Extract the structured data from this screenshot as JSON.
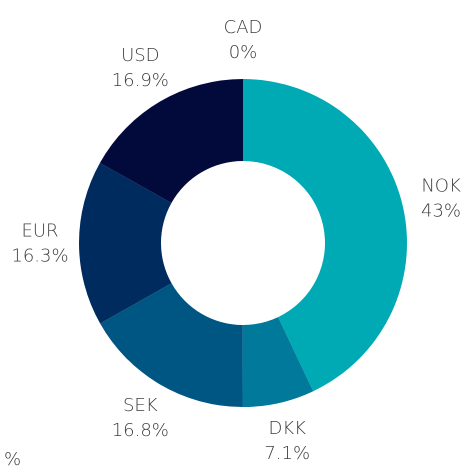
{
  "chart_data": {
    "type": "donut",
    "categories": [
      "NOK",
      "DKK",
      "SEK",
      "EUR",
      "USD",
      "CAD"
    ],
    "values": [
      43,
      7.1,
      16.8,
      16.3,
      16.9,
      0
    ],
    "value_labels": [
      "43%",
      "7.1%",
      "16.8%",
      "16.3%",
      "16.9%",
      "0%"
    ],
    "colors": [
      "#00aab4",
      "#00799a",
      "#005683",
      "#002b5e",
      "#020a3b",
      "#0a1a4a"
    ],
    "annotation": "%"
  }
}
